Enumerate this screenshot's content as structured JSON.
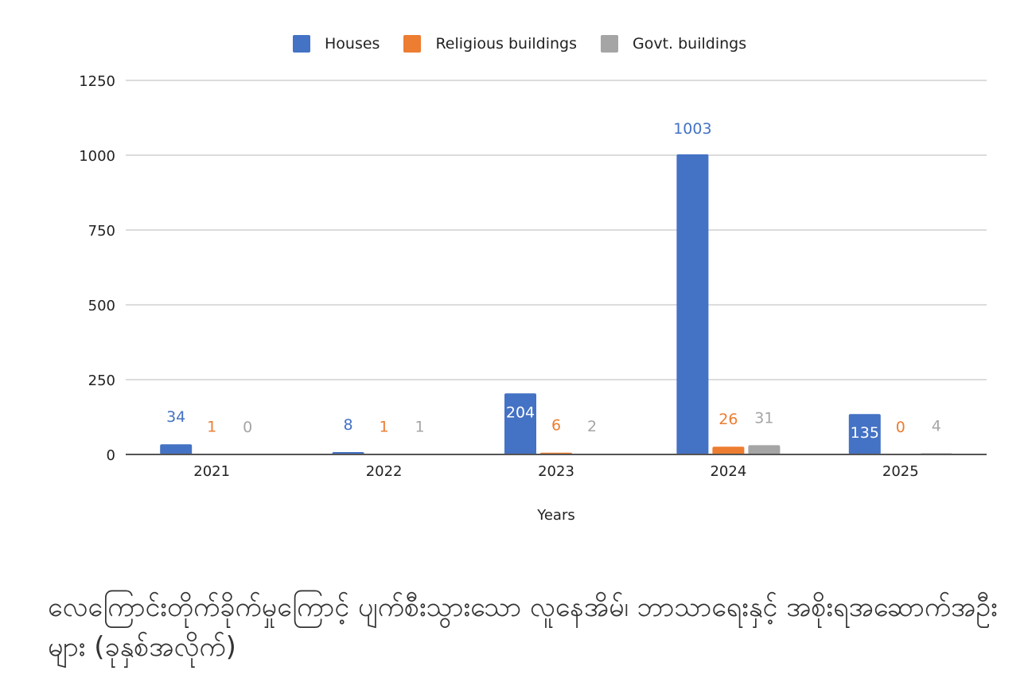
{
  "chart_data": {
    "type": "bar",
    "title": "",
    "xlabel": "Years",
    "ylabel": "",
    "categories": [
      "2021",
      "2022",
      "2023",
      "2024",
      "2025"
    ],
    "ylim": [
      0,
      1250
    ],
    "yticks": [
      "0",
      "250",
      "500",
      "750",
      "1000",
      "1250"
    ],
    "grid": true,
    "legend_placement": "top-center",
    "series": [
      {
        "name": "Houses",
        "color": "#4472c4",
        "values": [
          34,
          8,
          204,
          1003,
          135
        ]
      },
      {
        "name": "Religious buildings",
        "color": "#ed7d31",
        "values": [
          1,
          1,
          6,
          26,
          0
        ]
      },
      {
        "name": "Govt. buildings",
        "color": "#a5a5a5",
        "values": [
          0,
          1,
          2,
          31,
          4
        ]
      }
    ]
  },
  "caption": "လေကြောင်းတိုက်ခိုက်မှုကြောင့် ပျက်စီးသွားသော လူနေအိမ်၊ ဘာသာရေးနှင့် အစိုးရအဆောက်အဦးများ (ခုနှစ်အလိုက်)"
}
